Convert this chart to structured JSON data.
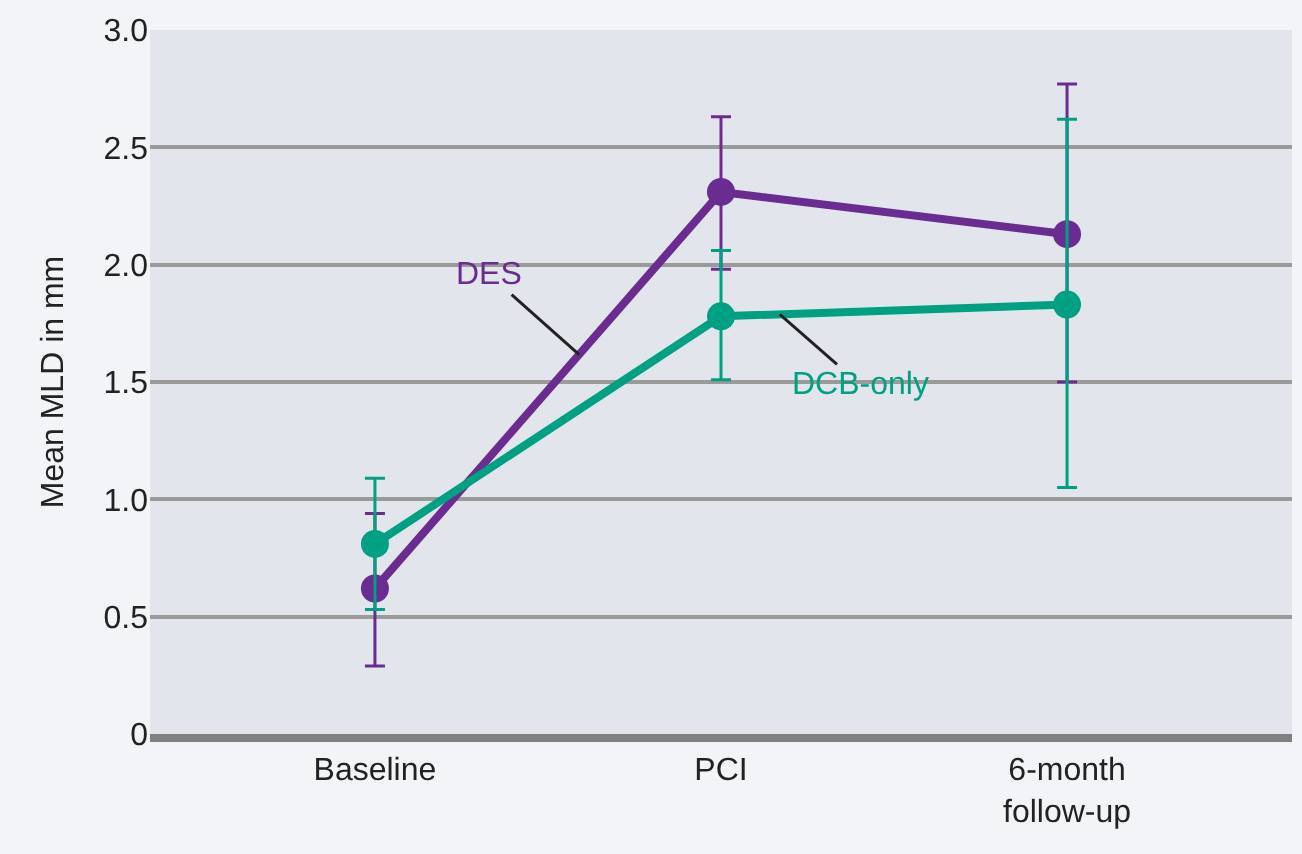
{
  "chart_data": {
    "type": "line",
    "ylabel": "Mean MLD in mm",
    "categories": [
      "Baseline",
      "PCI",
      "6-month\nfollow-up"
    ],
    "series": [
      {
        "name": "DES",
        "color": "#6b2c91",
        "values": [
          0.62,
          2.31,
          2.13
        ],
        "errors": [
          [
            0.29,
            0.94
          ],
          [
            1.98,
            2.63
          ],
          [
            1.5,
            2.77
          ]
        ]
      },
      {
        "name": "DCB-only",
        "color": "#00a082",
        "values": [
          0.81,
          1.78,
          1.83
        ],
        "errors": [
          [
            0.53,
            1.09
          ],
          [
            1.51,
            2.06
          ],
          [
            1.05,
            2.62
          ]
        ]
      }
    ],
    "ylim": [
      0,
      3.0
    ],
    "yticks": [
      0,
      0.5,
      {
        "value": 1,
        "label": "1.0"
      },
      1.5,
      {
        "value": 2,
        "label": "2.0"
      },
      2.5,
      {
        "value": 3,
        "label": "3.0"
      }
    ],
    "grid": "y",
    "legend": false,
    "marker": "circle",
    "line_style": "solid"
  }
}
